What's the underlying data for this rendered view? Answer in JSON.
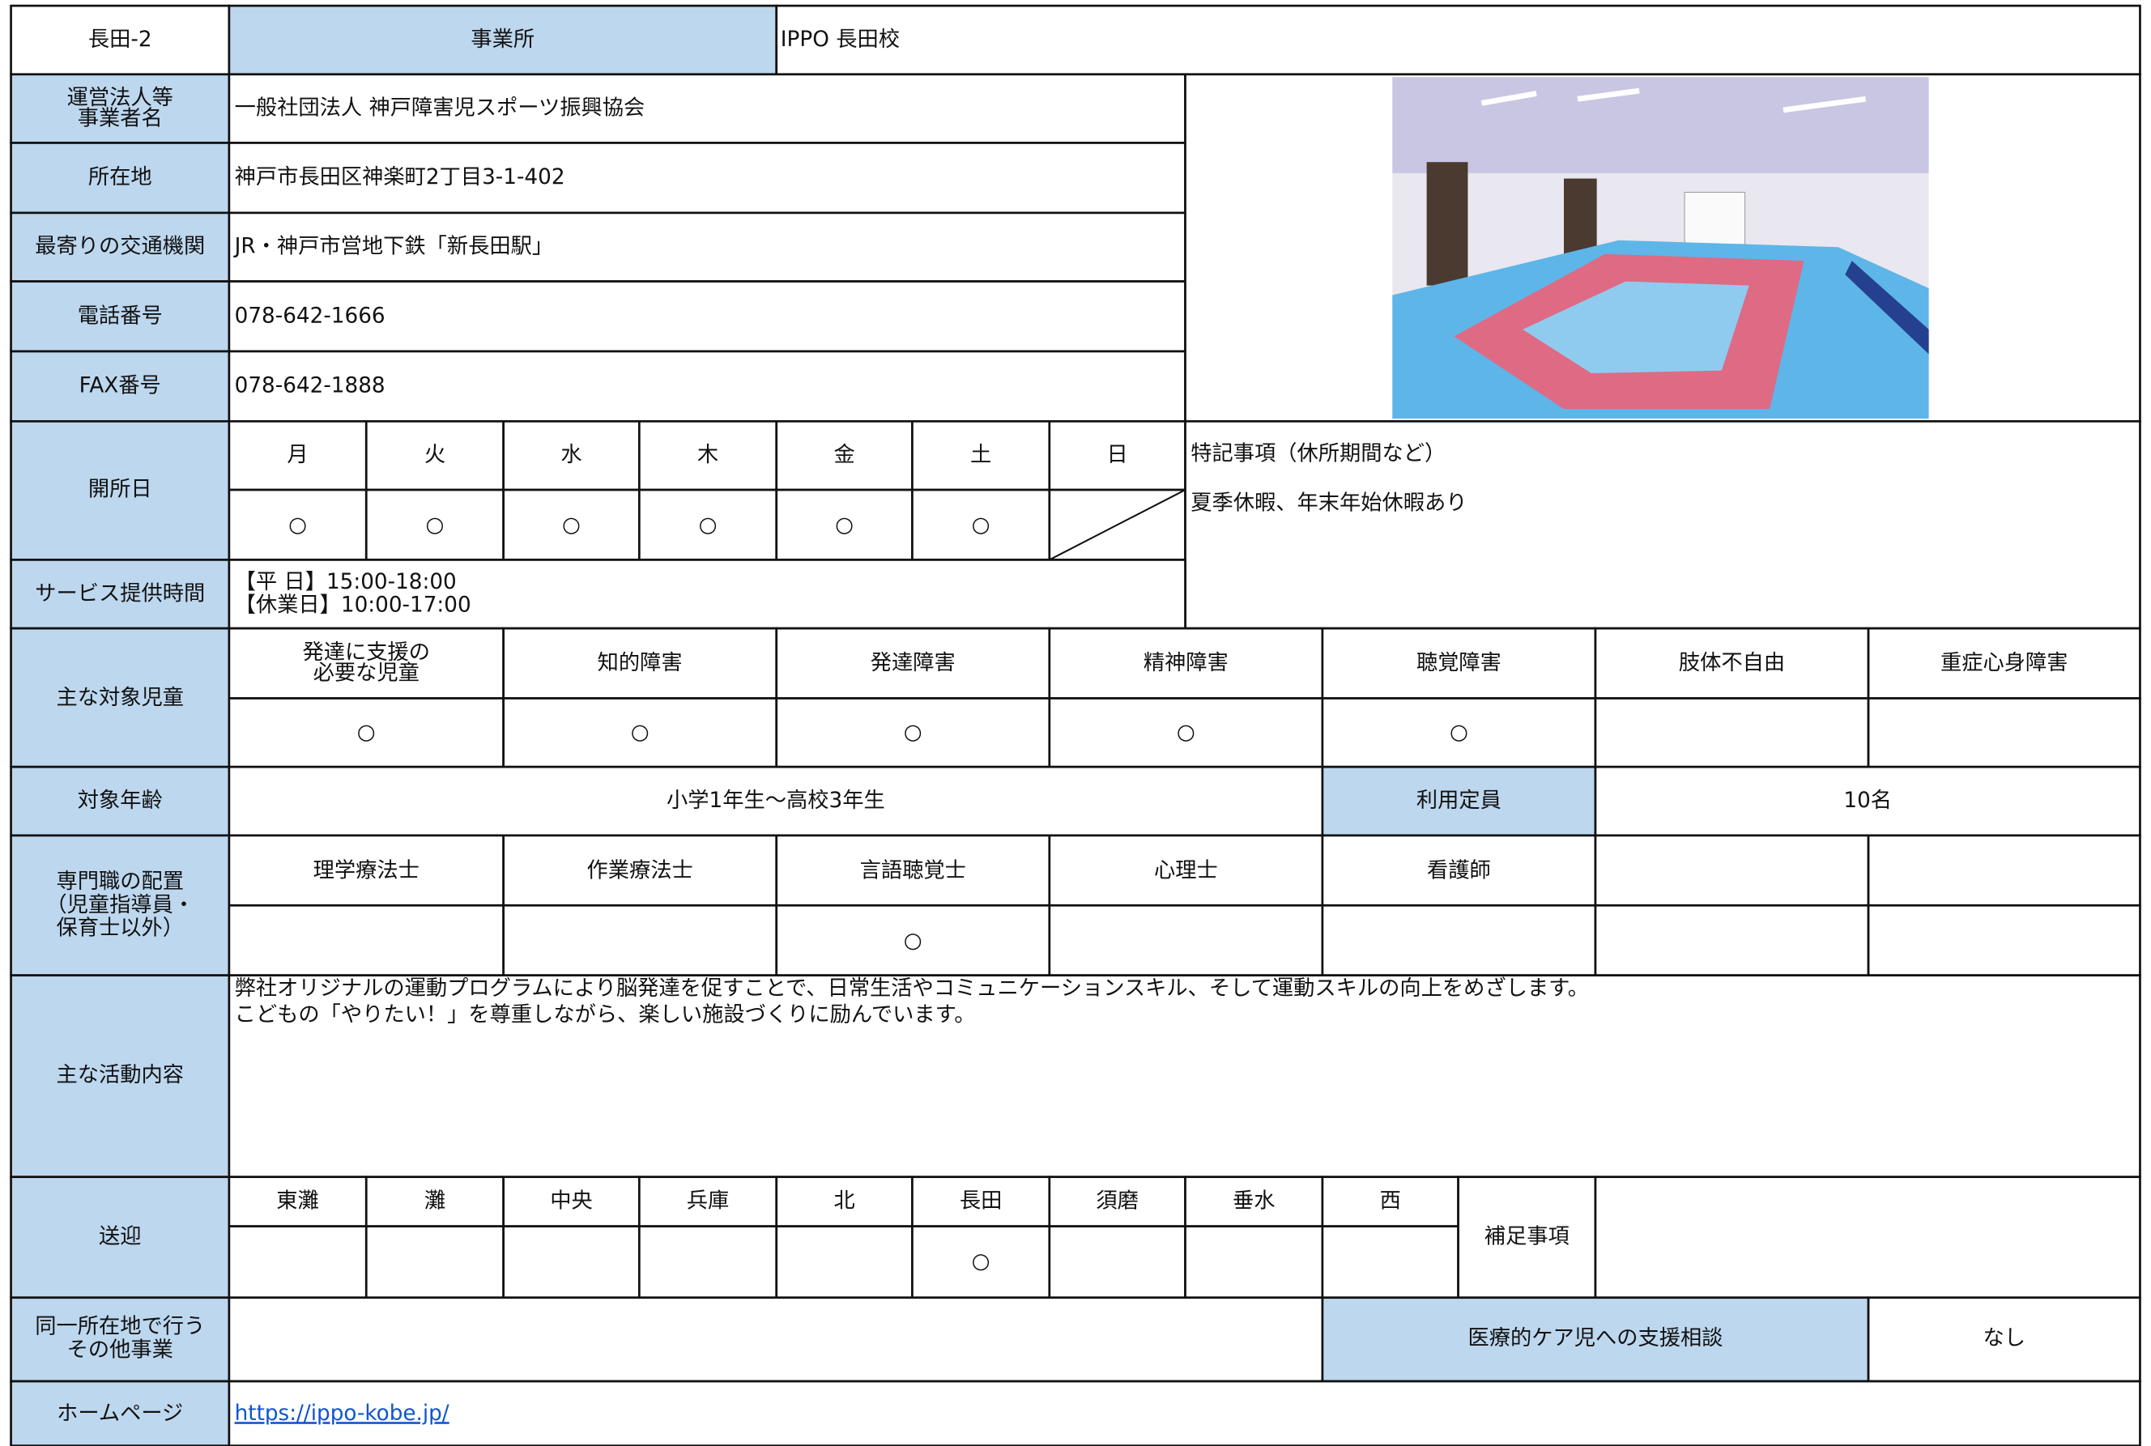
{
  "header": {
    "id": "長田-2",
    "office_label": "事業所",
    "office_name": "IPPO 長田校"
  },
  "info": [
    {
      "label": [
        "運営法人等",
        "事業者名"
      ],
      "value": "一般社団法人 神戸障害児スポーツ振興協会"
    },
    {
      "label": [
        "所在地"
      ],
      "value": "神戸市長田区神楽町2丁目3-1-402"
    },
    {
      "label": [
        "最寄りの交通機関"
      ],
      "value": "JR・神戸市営地下鉄「新長田駅」"
    },
    {
      "label": [
        "電話番号"
      ],
      "value": "078-642-1666"
    },
    {
      "label": [
        "FAX番号"
      ],
      "value": "078-642-1888"
    }
  ],
  "open_days": {
    "label": "開所日",
    "days": [
      "月",
      "火",
      "水",
      "木",
      "金",
      "土",
      "日"
    ],
    "marks": [
      "○",
      "○",
      "○",
      "○",
      "○",
      "○",
      null
    ]
  },
  "notes": {
    "label": "特記事項（休所期間など）",
    "text": "夏季休暇、年末年始休暇あり"
  },
  "service_hours": {
    "label": "サービス提供時間",
    "lines": [
      "【平 日】15:00-18:00",
      "【休業日】10:00-17:00"
    ]
  },
  "target_children": {
    "label": "主な対象児童",
    "categories": [
      [
        "発達に支援の",
        "必要な児童"
      ],
      [
        "知的障害"
      ],
      [
        "発達障害"
      ],
      [
        "精神障害"
      ],
      [
        "聴覚障害"
      ],
      [
        "肢体不自由"
      ],
      [
        "重症心身障害"
      ]
    ],
    "marks": [
      "○",
      "○",
      "○",
      "○",
      "○",
      null,
      null
    ]
  },
  "target_age": {
    "label": "対象年齢",
    "value": "小学1年生～高校3年生"
  },
  "capacity": {
    "label": "利用定員",
    "value": "10名"
  },
  "specialists": {
    "label": [
      "専門職の配置",
      "（児童指導員・",
      "保育士以外）"
    ],
    "categories": [
      "理学療法士",
      "作業療法士",
      "言語聴覚士",
      "心理士",
      "看護師",
      null,
      null
    ],
    "marks": [
      null,
      null,
      "○",
      null,
      null,
      null,
      null
    ]
  },
  "activities": {
    "label": "主な活動内容",
    "lines": [
      "弊社オリジナルの運動プログラムにより脳発達を促すことで、日常生活やコミュニケーションスキル、そして運動スキルの向上をめざします。",
      "こどもの「やりたい！」を尊重しながら、楽しい施設づくりに励んでいます。"
    ]
  },
  "transport": {
    "label": "送迎",
    "areas": [
      "東灘",
      "灘",
      "中央",
      "兵庫",
      "北",
      "長田",
      "須磨",
      "垂水",
      "西"
    ],
    "marks": [
      null,
      null,
      null,
      null,
      null,
      "○",
      null,
      null,
      null
    ],
    "supplement_label": "補足事項"
  },
  "other": {
    "label": [
      "同一所在地で行う",
      "その他事業"
    ],
    "care_label": "医療的ケア児への支援相談",
    "care_value": "なし"
  },
  "homepage": {
    "label": "ホームページ",
    "url": "https://ippo-kobe.jp/"
  }
}
